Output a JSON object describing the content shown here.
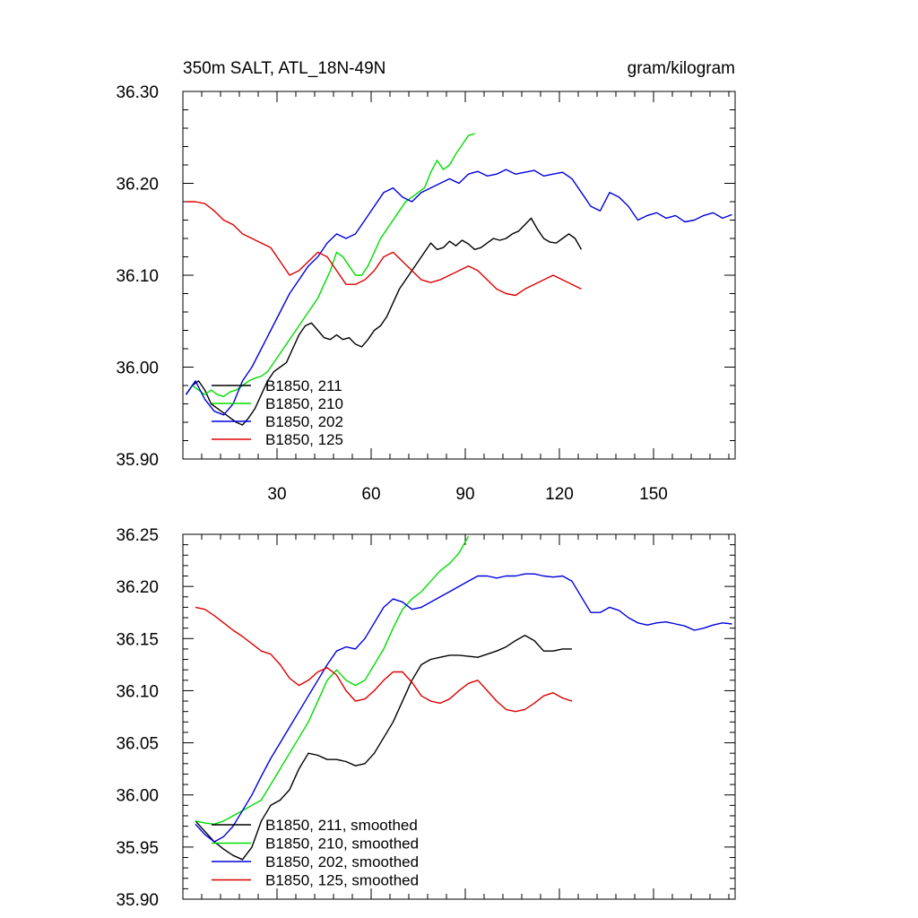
{
  "chart_data": [
    {
      "type": "line",
      "title": "350m SALT, ATL_18N-49N",
      "units": "gram/kilogram",
      "xlim": [
        0,
        176
      ],
      "ylim": [
        35.9,
        36.3
      ],
      "xticks": [
        30,
        60,
        90,
        120,
        150
      ],
      "xtick_labels": [
        "30",
        "60",
        "90",
        "120",
        "150"
      ],
      "yticks": [
        35.9,
        36.0,
        36.1,
        36.2,
        36.3
      ],
      "ytick_labels": [
        "35.90",
        "36.00",
        "36.10",
        "36.20",
        "36.30"
      ],
      "legend_position": "bottom-left",
      "grid": false,
      "series": [
        {
          "name": "B1850, 211",
          "color": "#000000",
          "x": [
            1,
            3,
            5,
            7,
            9,
            11,
            13,
            15,
            17,
            19,
            21,
            23,
            25,
            27,
            29,
            31,
            33,
            35,
            37,
            39,
            41,
            43,
            45,
            47,
            49,
            51,
            53,
            55,
            57,
            59,
            61,
            63,
            65,
            67,
            69,
            71,
            73,
            75,
            77,
            79,
            81,
            83,
            85,
            87,
            89,
            91,
            93,
            95,
            97,
            99,
            101,
            103,
            105,
            107,
            109,
            111,
            113,
            115,
            117,
            119,
            121,
            123,
            125,
            127
          ],
          "values": [
            35.97,
            35.98,
            35.985,
            35.975,
            35.96,
            35.955,
            35.95,
            35.945,
            35.94,
            35.937,
            35.945,
            35.955,
            35.97,
            35.985,
            35.995,
            36.0,
            36.005,
            36.02,
            36.035,
            36.045,
            36.048,
            36.04,
            36.032,
            36.03,
            36.035,
            36.03,
            36.032,
            36.025,
            36.022,
            36.03,
            36.04,
            36.045,
            36.055,
            36.07,
            36.085,
            36.095,
            36.105,
            36.115,
            36.125,
            36.135,
            36.128,
            36.13,
            36.137,
            36.132,
            36.138,
            36.134,
            36.128,
            36.13,
            36.135,
            36.14,
            36.138,
            36.14,
            36.145,
            36.148,
            36.155,
            36.162,
            36.15,
            36.14,
            36.136,
            36.135,
            36.14,
            36.145,
            36.14,
            36.128
          ]
        },
        {
          "name": "B1850, 210",
          "color": "#00dd00",
          "x": [
            1,
            3,
            5,
            7,
            9,
            11,
            13,
            15,
            17,
            19,
            21,
            23,
            25,
            27,
            29,
            31,
            33,
            35,
            37,
            39,
            41,
            43,
            45,
            47,
            49,
            51,
            53,
            55,
            57,
            59,
            61,
            63,
            65,
            67,
            69,
            71,
            73,
            75,
            77,
            79,
            81,
            83,
            85,
            87,
            89,
            91,
            93
          ],
          "values": [
            35.97,
            35.98,
            35.975,
            35.97,
            35.975,
            35.97,
            35.968,
            35.973,
            35.975,
            35.98,
            35.985,
            35.988,
            35.99,
            35.995,
            36.005,
            36.015,
            36.025,
            36.035,
            36.045,
            36.055,
            36.065,
            36.075,
            36.09,
            36.105,
            36.125,
            36.12,
            36.11,
            36.1,
            36.1,
            36.11,
            36.125,
            36.14,
            36.15,
            36.16,
            36.17,
            36.18,
            36.185,
            36.19,
            36.195,
            36.212,
            36.225,
            36.215,
            36.22,
            36.232,
            36.242,
            36.252,
            36.254
          ]
        },
        {
          "name": "B1850, 202",
          "color": "#0000dd",
          "x": [
            1,
            4,
            7,
            10,
            13,
            16,
            19,
            22,
            25,
            28,
            31,
            34,
            37,
            40,
            43,
            46,
            49,
            52,
            55,
            58,
            61,
            64,
            67,
            70,
            73,
            76,
            79,
            82,
            85,
            88,
            91,
            94,
            97,
            100,
            103,
            106,
            109,
            112,
            115,
            118,
            121,
            124,
            127,
            130,
            133,
            136,
            139,
            142,
            145,
            148,
            151,
            154,
            157,
            160,
            163,
            166,
            169,
            172,
            175
          ],
          "values": [
            35.97,
            35.985,
            35.965,
            35.952,
            35.948,
            35.96,
            35.985,
            36.0,
            36.02,
            36.04,
            36.06,
            36.08,
            36.095,
            36.11,
            36.12,
            36.135,
            36.145,
            36.14,
            36.145,
            36.16,
            36.175,
            36.19,
            36.195,
            36.185,
            36.18,
            36.19,
            36.195,
            36.2,
            36.205,
            36.2,
            36.21,
            36.213,
            36.208,
            36.21,
            36.215,
            36.21,
            36.212,
            36.214,
            36.208,
            36.21,
            36.212,
            36.205,
            36.19,
            36.175,
            36.17,
            36.19,
            36.185,
            36.175,
            36.16,
            36.165,
            36.168,
            36.162,
            36.165,
            36.158,
            36.16,
            36.165,
            36.168,
            36.162,
            36.166
          ]
        },
        {
          "name": "B1850, 125",
          "color": "#dd0000",
          "x": [
            1,
            4,
            7,
            10,
            13,
            16,
            19,
            22,
            25,
            28,
            31,
            34,
            37,
            40,
            43,
            46,
            49,
            52,
            55,
            58,
            61,
            64,
            67,
            70,
            73,
            76,
            79,
            82,
            85,
            88,
            91,
            94,
            97,
            100,
            103,
            106,
            109,
            112,
            115,
            118,
            121,
            124,
            127
          ],
          "values": [
            36.18,
            36.18,
            36.178,
            36.17,
            36.16,
            36.155,
            36.145,
            36.14,
            36.135,
            36.13,
            36.115,
            36.1,
            36.105,
            36.115,
            36.125,
            36.12,
            36.105,
            36.09,
            36.09,
            36.095,
            36.105,
            36.12,
            36.125,
            36.115,
            36.105,
            36.095,
            36.092,
            36.095,
            36.1,
            36.105,
            36.11,
            36.105,
            36.095,
            36.085,
            36.08,
            36.078,
            36.085,
            36.09,
            36.095,
            36.1,
            36.095,
            36.09,
            36.085
          ]
        }
      ]
    },
    {
      "type": "line",
      "xlim": [
        0,
        176
      ],
      "ylim": [
        35.9,
        36.25
      ],
      "xticks": [
        30,
        60,
        90,
        120,
        150
      ],
      "yticks": [
        35.9,
        35.95,
        36.0,
        36.05,
        36.1,
        36.15,
        36.2,
        36.25
      ],
      "ytick_labels": [
        "35.90",
        "35.95",
        "36.00",
        "36.05",
        "36.10",
        "36.15",
        "36.20",
        "36.25"
      ],
      "legend_position": "bottom-left",
      "grid": false,
      "series": [
        {
          "name": "B1850, 211, smoothed",
          "color": "#000000",
          "x": [
            4,
            7,
            10,
            13,
            16,
            19,
            22,
            25,
            28,
            31,
            34,
            37,
            40,
            43,
            46,
            49,
            52,
            55,
            58,
            61,
            64,
            67,
            70,
            73,
            76,
            79,
            82,
            85,
            88,
            91,
            94,
            97,
            100,
            103,
            106,
            109,
            112,
            115,
            118,
            121,
            124
          ],
          "values": [
            35.975,
            35.965,
            35.955,
            35.948,
            35.942,
            35.938,
            35.95,
            35.975,
            35.99,
            35.995,
            36.005,
            36.025,
            36.04,
            36.038,
            36.034,
            36.034,
            36.032,
            36.028,
            36.03,
            36.04,
            36.055,
            36.07,
            36.09,
            36.11,
            36.125,
            36.13,
            36.132,
            36.134,
            36.134,
            36.133,
            36.132,
            36.135,
            36.138,
            36.142,
            36.148,
            36.153,
            36.148,
            36.138,
            36.138,
            36.14,
            36.14
          ]
        },
        {
          "name": "B1850, 210, smoothed",
          "color": "#00dd00",
          "x": [
            4,
            7,
            10,
            13,
            16,
            19,
            22,
            25,
            28,
            31,
            34,
            37,
            40,
            43,
            46,
            49,
            52,
            55,
            58,
            61,
            64,
            67,
            70,
            73,
            76,
            79,
            82,
            85,
            88,
            91
          ],
          "values": [
            35.975,
            35.973,
            35.972,
            35.975,
            35.98,
            35.985,
            35.99,
            35.995,
            36.01,
            36.025,
            36.04,
            36.055,
            36.07,
            36.09,
            36.11,
            36.12,
            36.11,
            36.105,
            36.11,
            36.125,
            36.14,
            36.16,
            36.178,
            36.188,
            36.195,
            36.205,
            36.215,
            36.222,
            36.232,
            36.248
          ]
        },
        {
          "name": "B1850, 202, smoothed",
          "color": "#0000dd",
          "x": [
            4,
            7,
            10,
            13,
            16,
            19,
            22,
            25,
            28,
            31,
            34,
            37,
            40,
            43,
            46,
            49,
            52,
            55,
            58,
            61,
            64,
            67,
            70,
            73,
            76,
            79,
            82,
            85,
            88,
            91,
            94,
            97,
            100,
            103,
            106,
            109,
            112,
            115,
            118,
            121,
            124,
            127,
            130,
            133,
            136,
            139,
            142,
            145,
            148,
            151,
            154,
            157,
            160,
            163,
            166,
            169,
            172,
            175
          ],
          "values": [
            35.972,
            35.962,
            35.955,
            35.96,
            35.97,
            35.985,
            36.0,
            36.018,
            36.035,
            36.05,
            36.065,
            36.08,
            36.095,
            36.11,
            36.125,
            36.138,
            36.142,
            36.14,
            36.15,
            36.165,
            36.18,
            36.188,
            36.185,
            36.178,
            36.18,
            36.185,
            36.19,
            36.195,
            36.2,
            36.205,
            36.21,
            36.21,
            36.208,
            36.21,
            36.21,
            36.212,
            36.212,
            36.21,
            36.209,
            36.21,
            36.205,
            36.19,
            36.175,
            36.175,
            36.18,
            36.177,
            36.17,
            36.165,
            36.163,
            36.165,
            36.166,
            36.164,
            36.162,
            36.158,
            36.16,
            36.163,
            36.165,
            36.164
          ]
        },
        {
          "name": "B1850, 125, smoothed",
          "color": "#dd0000",
          "x": [
            4,
            7,
            10,
            13,
            16,
            19,
            22,
            25,
            28,
            31,
            34,
            37,
            40,
            43,
            46,
            49,
            52,
            55,
            58,
            61,
            64,
            67,
            70,
            73,
            76,
            79,
            82,
            85,
            88,
            91,
            94,
            97,
            100,
            103,
            106,
            109,
            112,
            115,
            118,
            121,
            124
          ],
          "values": [
            36.18,
            36.178,
            36.172,
            36.165,
            36.158,
            36.152,
            36.145,
            36.138,
            36.135,
            36.125,
            36.112,
            36.105,
            36.11,
            36.118,
            36.122,
            36.115,
            36.1,
            36.09,
            36.092,
            36.1,
            36.11,
            36.118,
            36.118,
            36.108,
            36.095,
            36.09,
            36.088,
            36.092,
            36.1,
            36.107,
            36.11,
            36.1,
            36.09,
            36.082,
            36.08,
            36.082,
            36.088,
            36.095,
            36.098,
            36.093,
            36.09
          ]
        }
      ]
    }
  ]
}
